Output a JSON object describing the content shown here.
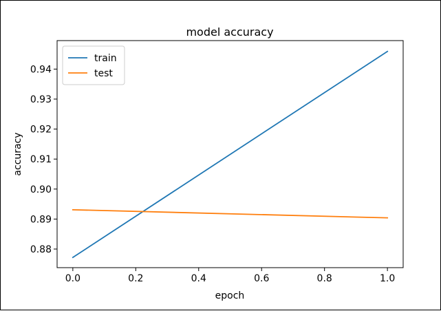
{
  "chart_data": {
    "type": "line",
    "title": "model accuracy",
    "xlabel": "epoch",
    "ylabel": "accuracy",
    "xlim": [
      -0.05,
      1.05
    ],
    "ylim": [
      0.8738,
      0.9495
    ],
    "xticks": [
      0.0,
      0.2,
      0.4,
      0.6,
      0.8,
      1.0
    ],
    "xtick_labels": [
      "0.0",
      "0.2",
      "0.4",
      "0.6",
      "0.8",
      "1.0"
    ],
    "yticks": [
      0.88,
      0.89,
      0.9,
      0.91,
      0.92,
      0.93,
      0.94
    ],
    "ytick_labels": [
      "0.88",
      "0.89",
      "0.90",
      "0.91",
      "0.92",
      "0.93",
      "0.94"
    ],
    "grid": false,
    "legend_position": "top-left",
    "series": [
      {
        "name": "train",
        "color": "#1f77b4",
        "x": [
          0,
          1
        ],
        "y": [
          0.8772,
          0.9459
        ]
      },
      {
        "name": "test",
        "color": "#ff7f0e",
        "x": [
          0,
          1
        ],
        "y": [
          0.8931,
          0.8904
        ]
      }
    ]
  }
}
